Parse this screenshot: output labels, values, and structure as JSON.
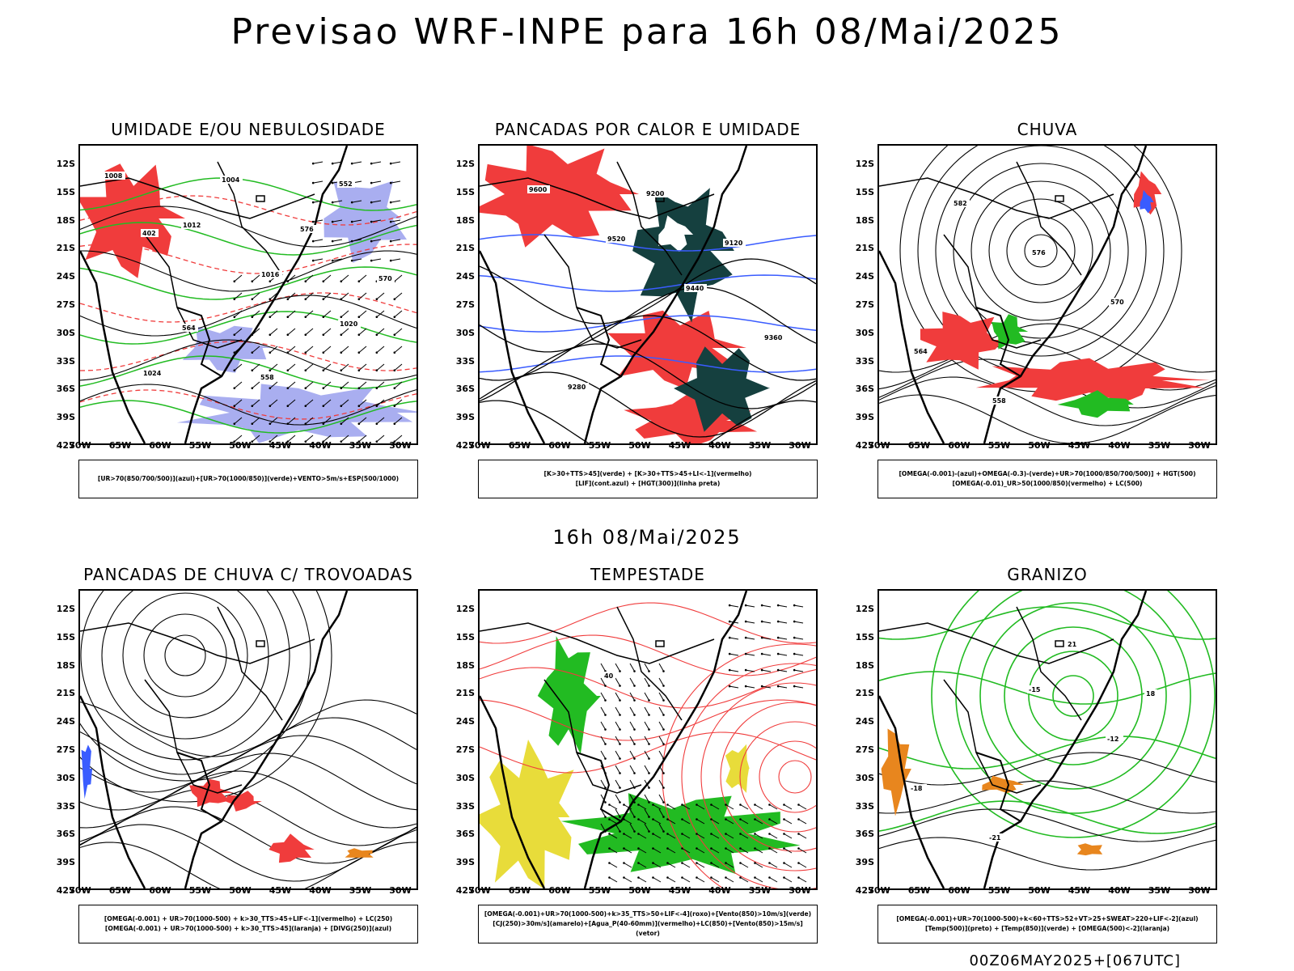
{
  "title": "Previsao WRF-INPE  para 16h 08/Mai/2025",
  "mid_label": "16h 08/Mai/2025",
  "footer": "00Z06MAY2025+[067UTC]",
  "lat_labels": [
    "12S",
    "15S",
    "18S",
    "21S",
    "24S",
    "27S",
    "30S",
    "33S",
    "36S",
    "39S",
    "42S"
  ],
  "lon_labels": [
    "70W",
    "65W",
    "60W",
    "55W",
    "50W",
    "45W",
    "40W",
    "35W",
    "30W"
  ],
  "colors": {
    "red": "#f03c3c",
    "green": "#22bb22",
    "blue": "#3a5cff",
    "lavender": "#a9aef0",
    "darkteal": "#15403f",
    "yellow": "#e8dc3a",
    "orange": "#e8861e"
  },
  "panels": [
    {
      "id": "umidade",
      "title": "UMIDADE E/OU NEBULOSIDADE",
      "legend": [
        "[UR>70(850/700/500)](azul)+[UR>70(1000/850)](verde)+VENTO>5m/s+ESP(500/1000)"
      ],
      "contour_labels": [
        "1008",
        "1012",
        "1016",
        "1020",
        "1024",
        "1004",
        "576",
        "570",
        "564",
        "558",
        "552",
        "402"
      ]
    },
    {
      "id": "pancadas_calor",
      "title": "PANCADAS POR CALOR E UMIDADE",
      "legend": [
        "[K>30+TTS>45](verde) + [K>30+TTS>45+LI<-1](vermelho)",
        "[LIF](cont.azul) + [HGT(300)](linha preta)"
      ],
      "contour_labels": [
        "9600",
        "9520",
        "9440",
        "9360",
        "9280",
        "9200",
        "9120"
      ]
    },
    {
      "id": "chuva",
      "title": "CHUVA",
      "legend": [
        "[OMEGA(-0.001)-(azul)+OMEGA(-0.3)-(verde)+UR>70(1000/850/700/500)] + HGT(500)",
        "[OMEGA(-0.01)_UR>50(1000/850)(vermelho) + LC(500)"
      ],
      "contour_labels": [
        "582",
        "576",
        "570",
        "564",
        "558"
      ]
    },
    {
      "id": "trovoadas",
      "title": "PANCADAS DE CHUVA C/ TROVOADAS",
      "legend": [
        "[OMEGA(-0.001) + UR>70(1000-500) + k>30_TTS>45+LIF<-1](vermelho) + LC(250)",
        "[OMEGA(-0.001) + UR>70(1000-500) + k>30_TTS>45](laranja) + [DIVG(250)](azul)"
      ],
      "contour_labels": []
    },
    {
      "id": "tempestade",
      "title": "TEMPESTADE",
      "legend": [
        "[OMEGA(-0.001)+UR>70(1000-500)+k>35_TTS>50+LIF<-4](roxo)+[Vento(850)>10m/s](verde)",
        "[CJ(250)>30m/s](amarelo)+[Agua_P(40-60mm)](vermelho)+LC(850)+[Vento(850)>15m/s](vetor)"
      ],
      "contour_labels": [
        "40"
      ]
    },
    {
      "id": "granizo",
      "title": "GRANIZO",
      "legend": [
        "[OMEGA(-0.001)+UR>70(1000-500)+k<60+TTS>52+VT>25+SWEAT>220+LIF<-2](azul)",
        "[Temp(500)](preto) + [Temp(850)](verde) + [OMEGA(500)<-2](laranja)"
      ],
      "contour_labels": [
        "-15",
        "-12",
        "-18",
        "-21",
        "21",
        "18"
      ]
    }
  ]
}
